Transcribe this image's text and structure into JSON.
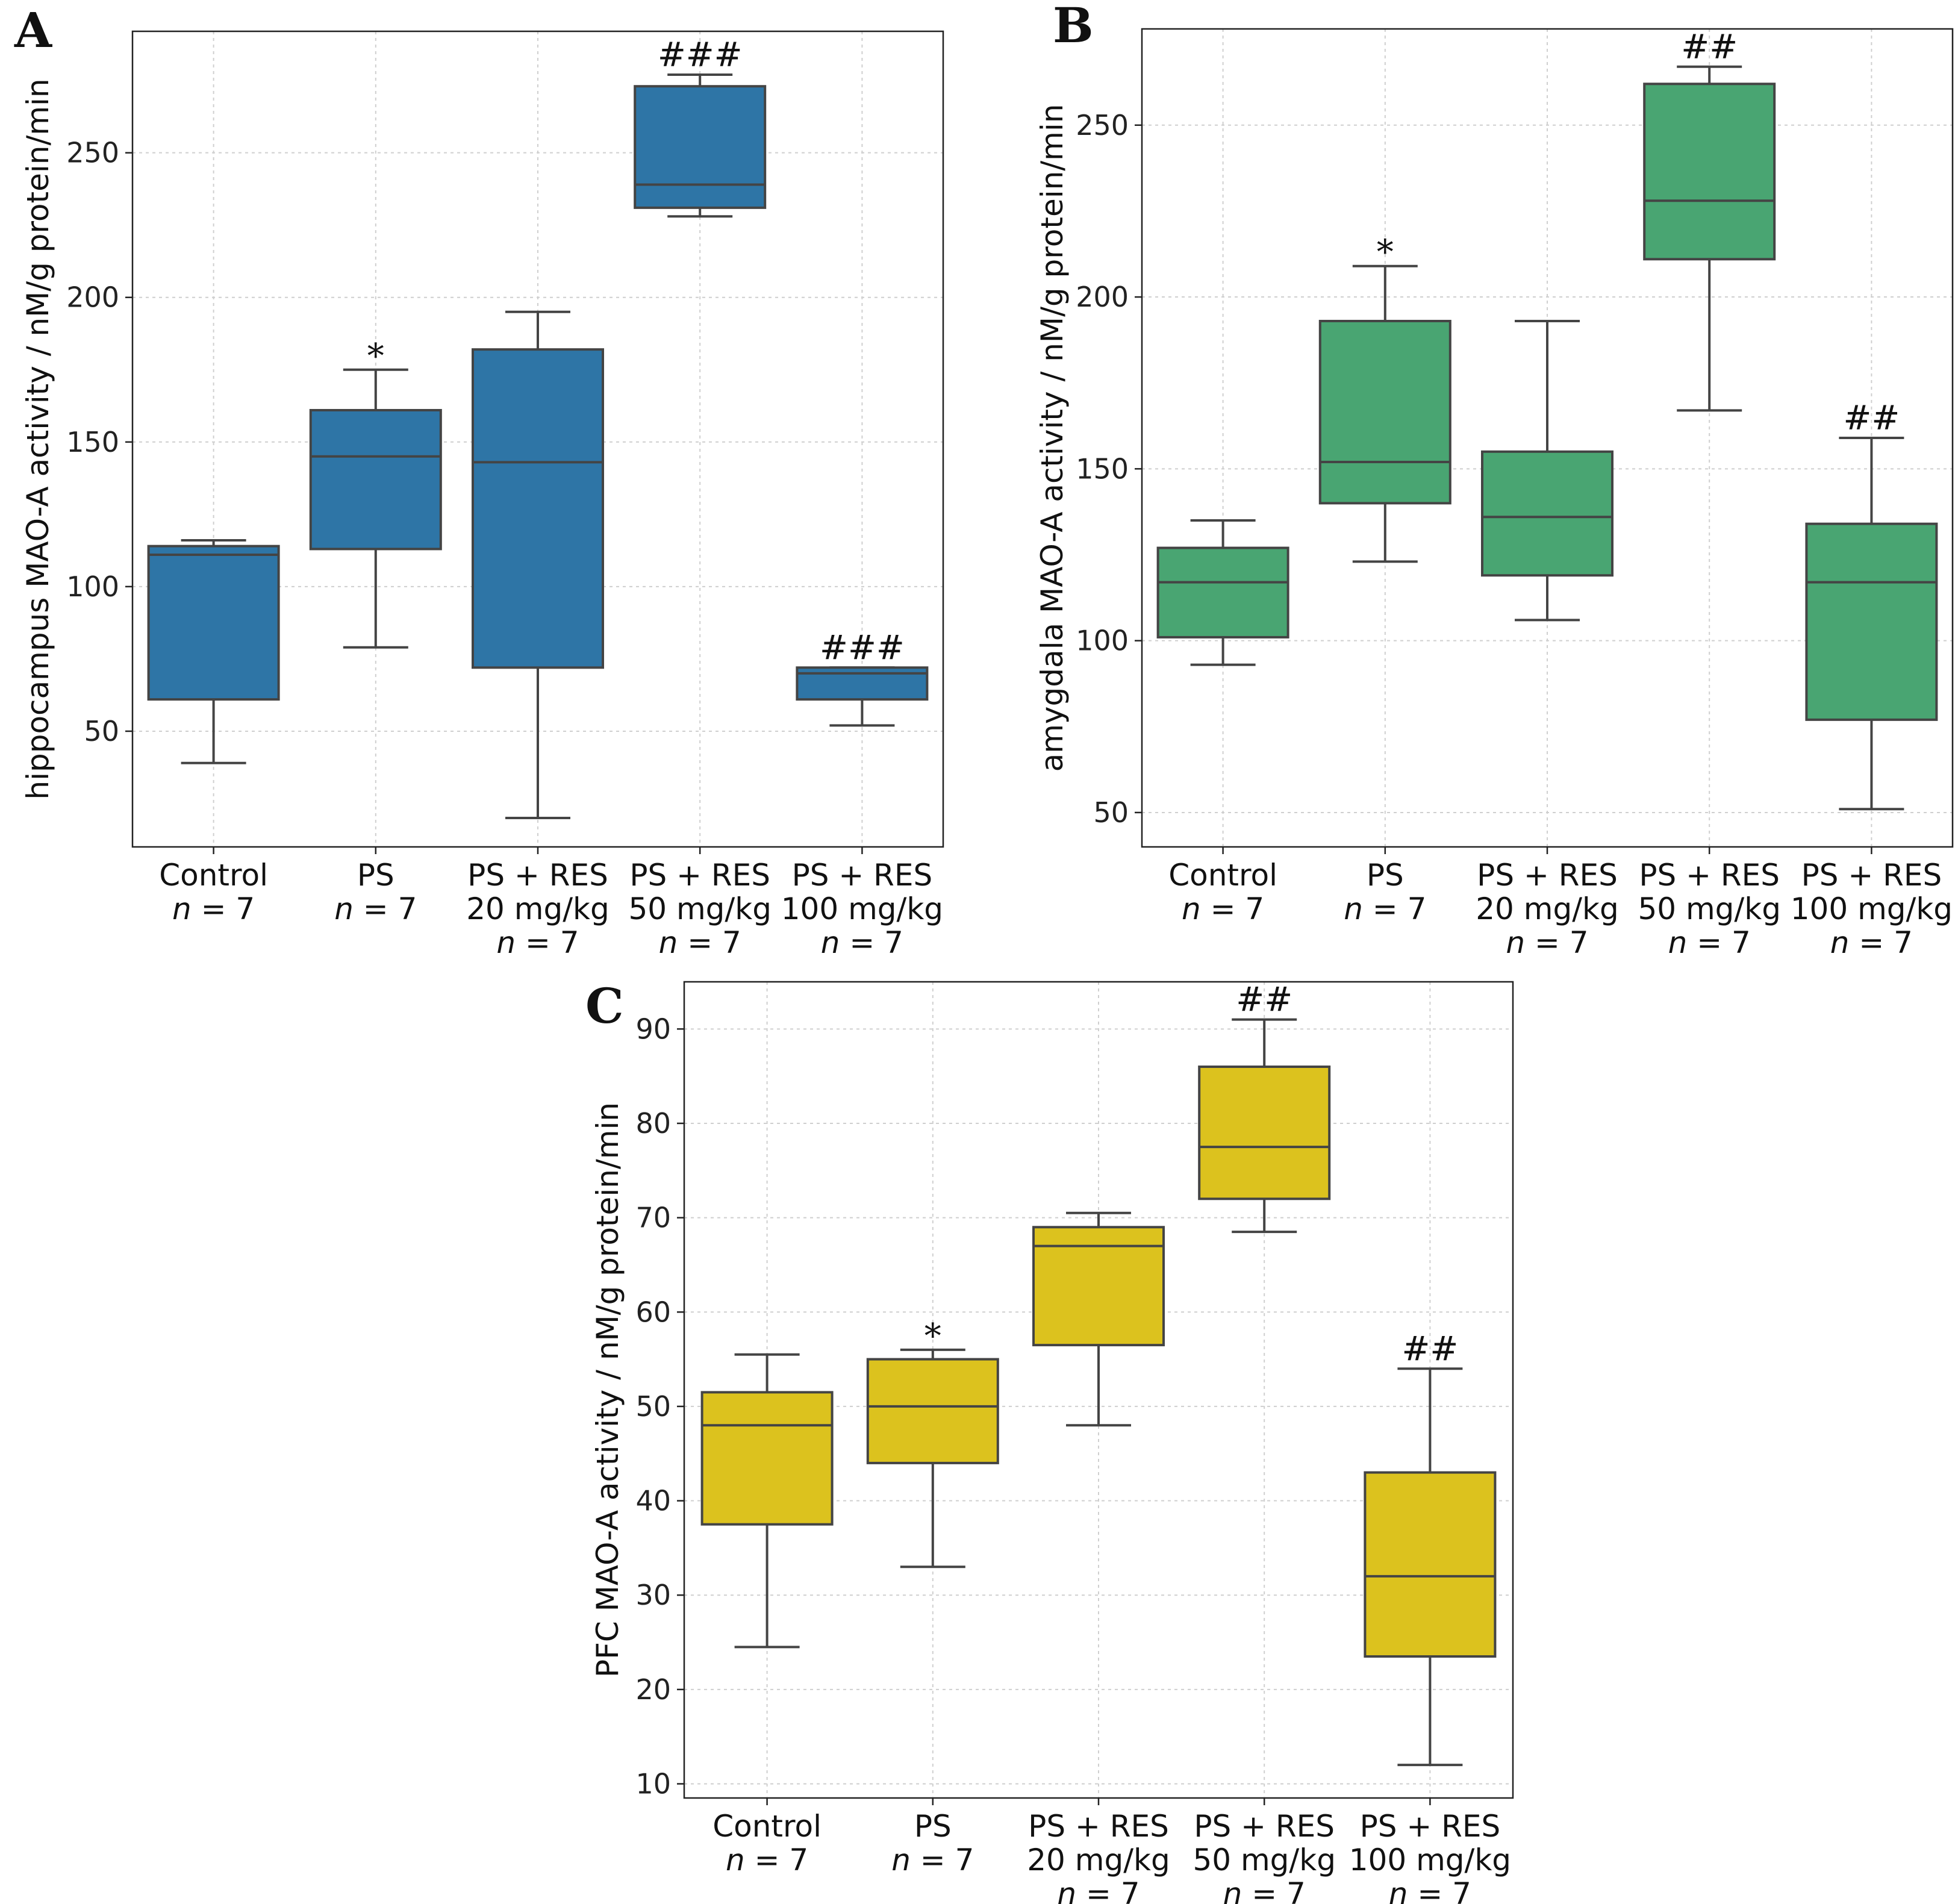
{
  "colors": {
    "panel_A_box": "#2e75a6",
    "panel_B_box": "#49a572",
    "panel_C_box": "#dcc21e",
    "box_edge": "#444444",
    "grid": "#cfcfcf"
  },
  "chart_data": [
    {
      "type": "box",
      "panel": "A",
      "title": "",
      "xlabel": "",
      "ylabel": "hippocampus MAO-A activity / nM/g protein/min",
      "ylim": [
        10,
        292
      ],
      "yticks": [
        50,
        100,
        150,
        200,
        250
      ],
      "grid": true,
      "categories": [
        {
          "label": "Control",
          "n": "n = 7",
          "dose": "",
          "dose_n": ""
        },
        {
          "label": "PS",
          "n": "n = 7",
          "dose": "",
          "dose_n": ""
        },
        {
          "label": "PS + RES",
          "n": "",
          "dose": "20 mg/kg",
          "dose_n": "n = 7"
        },
        {
          "label": "PS + RES",
          "n": "",
          "dose": "50 mg/kg",
          "dose_n": "n = 7"
        },
        {
          "label": "PS + RES",
          "n": "",
          "dose": "100 mg/kg",
          "dose_n": "n = 7"
        }
      ],
      "boxes": [
        {
          "whislo": 39,
          "q1": 61,
          "median": 111,
          "q3": 114,
          "whishi": 116,
          "annotation": ""
        },
        {
          "whislo": 79,
          "q1": 113,
          "median": 145,
          "q3": 161,
          "whishi": 175,
          "annotation": "*"
        },
        {
          "whislo": 20,
          "q1": 72,
          "median": 143,
          "q3": 182,
          "whishi": 195,
          "annotation": ""
        },
        {
          "whislo": 228,
          "q1": 231,
          "median": 239,
          "q3": 273,
          "whishi": 277,
          "annotation": "###"
        },
        {
          "whislo": 52,
          "q1": 61,
          "median": 70,
          "q3": 72,
          "whishi": 72,
          "annotation": "###"
        }
      ]
    },
    {
      "type": "box",
      "panel": "B",
      "title": "",
      "xlabel": "",
      "ylabel": "amygdala MAO-A activity / nM/g protein/min",
      "ylim": [
        40,
        278
      ],
      "yticks": [
        50,
        100,
        150,
        200,
        250
      ],
      "grid": true,
      "categories": [
        {
          "label": "Control",
          "n": "n = 7",
          "dose": "",
          "dose_n": ""
        },
        {
          "label": "PS",
          "n": "n = 7",
          "dose": "",
          "dose_n": ""
        },
        {
          "label": "PS + RES",
          "n": "",
          "dose": "20 mg/kg",
          "dose_n": "n = 7"
        },
        {
          "label": "PS + RES",
          "n": "",
          "dose": "50 mg/kg",
          "dose_n": "n = 7"
        },
        {
          "label": "PS + RES",
          "n": "",
          "dose": "100 mg/kg",
          "dose_n": "n = 7"
        }
      ],
      "boxes": [
        {
          "whislo": 93,
          "q1": 101,
          "median": 117,
          "q3": 127,
          "whishi": 135,
          "annotation": ""
        },
        {
          "whislo": 123,
          "q1": 140,
          "median": 152,
          "q3": 193,
          "whishi": 209,
          "annotation": "*"
        },
        {
          "whislo": 106,
          "q1": 119,
          "median": 136,
          "q3": 155,
          "whishi": 193,
          "annotation": ""
        },
        {
          "whislo": 167,
          "q1": 211,
          "median": 228,
          "q3": 262,
          "whishi": 267,
          "annotation": "##"
        },
        {
          "whislo": 51,
          "q1": 77,
          "median": 117,
          "q3": 134,
          "whishi": 159,
          "annotation": "##"
        }
      ]
    },
    {
      "type": "box",
      "panel": "C",
      "title": "",
      "xlabel": "",
      "ylabel": "PFC MAO-A activity / nM/g protein/min",
      "ylim": [
        8.5,
        95
      ],
      "yticks": [
        10,
        20,
        30,
        40,
        50,
        60,
        70,
        80,
        90
      ],
      "grid": true,
      "categories": [
        {
          "label": "Control",
          "n": "n = 7",
          "dose": "",
          "dose_n": ""
        },
        {
          "label": "PS",
          "n": "n = 7",
          "dose": "",
          "dose_n": ""
        },
        {
          "label": "PS + RES",
          "n": "",
          "dose": "20 mg/kg",
          "dose_n": "n = 7"
        },
        {
          "label": "PS + RES",
          "n": "",
          "dose": "50 mg/kg",
          "dose_n": "n = 7"
        },
        {
          "label": "PS + RES",
          "n": "",
          "dose": "100 mg/kg",
          "dose_n": "n = 7"
        }
      ],
      "boxes": [
        {
          "whislo": 24.5,
          "q1": 37.5,
          "median": 48,
          "q3": 51.5,
          "whishi": 55.5,
          "annotation": ""
        },
        {
          "whislo": 33,
          "q1": 44,
          "median": 50,
          "q3": 55,
          "whishi": 56,
          "annotation": "*"
        },
        {
          "whislo": 48,
          "q1": 56.5,
          "median": 67,
          "q3": 69,
          "whishi": 70.5,
          "annotation": ""
        },
        {
          "whislo": 68.5,
          "q1": 72,
          "median": 77.5,
          "q3": 86,
          "whishi": 91,
          "annotation": "##"
        },
        {
          "whislo": 12,
          "q1": 23.5,
          "median": 32,
          "q3": 43,
          "whishi": 54,
          "annotation": "##"
        }
      ]
    }
  ]
}
